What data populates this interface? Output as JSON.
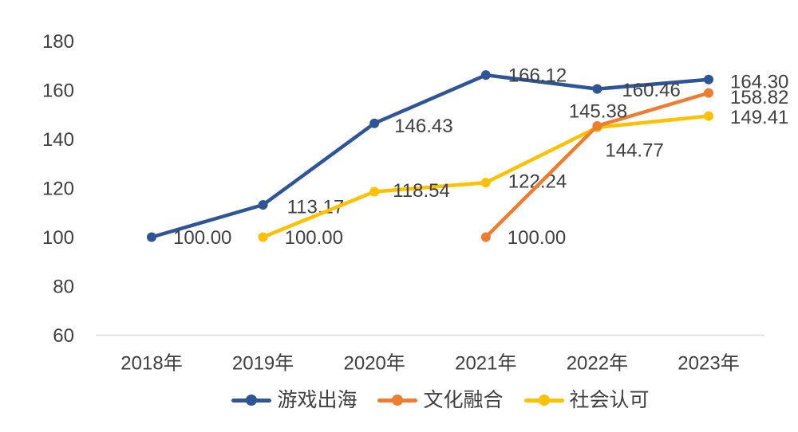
{
  "chart_data": {
    "type": "line",
    "title": "",
    "xlabel": "",
    "ylabel": "",
    "categories": [
      "2018年",
      "2019年",
      "2020年",
      "2021年",
      "2022年",
      "2023年"
    ],
    "y_ticks": [
      "60",
      "80",
      "100",
      "120",
      "140",
      "160",
      "180"
    ],
    "ylim": [
      60,
      180
    ],
    "grid": false,
    "legend_position": "bottom",
    "axis_color": "#D9D9D9",
    "text_color": "#404040",
    "series": [
      {
        "name": "游戏出海",
        "color": "#2F5597",
        "values": [
          100.0,
          113.17,
          146.43,
          166.12,
          160.46,
          164.3
        ],
        "labels": [
          "100.00",
          "113.17",
          "146.43",
          "166.12",
          "160.46",
          "164.30"
        ],
        "label_offsets": [
          [
            27,
            1,
            "s"
          ],
          [
            30,
            3,
            "s"
          ],
          [
            25,
            4,
            "s"
          ],
          [
            28,
            1,
            "s"
          ],
          [
            31,
            2,
            "s"
          ],
          [
            27,
            3,
            "s"
          ]
        ]
      },
      {
        "name": "文化融合",
        "color": "#ED7D31",
        "values": [
          null,
          null,
          null,
          100.0,
          145.38,
          158.82
        ],
        "labels": [
          null,
          null,
          null,
          "100.00",
          "145.38",
          "158.82"
        ],
        "label_offsets": [
          null,
          null,
          null,
          [
            27,
            1,
            "s"
          ],
          [
            1,
            -18,
            "m"
          ],
          [
            27,
            6,
            "s"
          ]
        ]
      },
      {
        "name": "社会认可",
        "color": "#FFC000",
        "values": [
          null,
          100.0,
          118.54,
          122.24,
          144.77,
          149.41
        ],
        "labels": [
          null,
          "100.00",
          "118.54",
          "122.24",
          "144.77",
          "149.41"
        ],
        "label_offsets": [
          null,
          [
            27,
            1,
            "s"
          ],
          [
            23,
            -1,
            "s"
          ],
          [
            28,
            -1,
            "s"
          ],
          [
            10,
            29,
            "s"
          ],
          [
            27,
            2,
            "s"
          ]
        ]
      }
    ],
    "draw_order": [
      0,
      2,
      1
    ]
  }
}
